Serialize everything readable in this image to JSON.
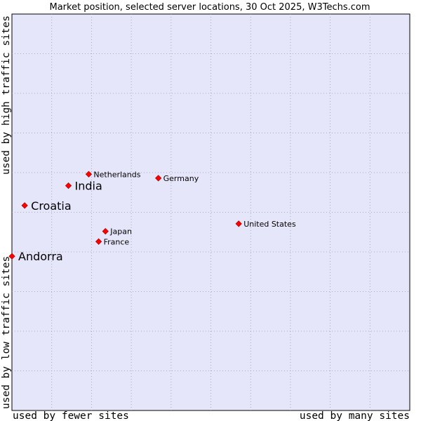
{
  "chart_data": {
    "type": "scatter",
    "title": "Market position, selected server locations, 30 Oct 2025, W3Techs.com",
    "xlabel_left": "used by fewer sites",
    "xlabel_right": "used by many sites",
    "ylabel_bottom": "used by low traffic sites",
    "ylabel_top": "used by high traffic sites",
    "xlim": [
      0,
      100
    ],
    "ylim": [
      0,
      100
    ],
    "grid": true,
    "background_color": "#e6e6fa",
    "grid_color": "#9999aa",
    "marker_color": "#ff0000",
    "points": [
      {
        "label": "Netherlands",
        "x": 19.3,
        "y": 59.6,
        "emphasis": false
      },
      {
        "label": "India",
        "x": 14.2,
        "y": 56.7,
        "emphasis": true
      },
      {
        "label": "Germany",
        "x": 36.8,
        "y": 58.6,
        "emphasis": false
      },
      {
        "label": "Croatia",
        "x": 3.2,
        "y": 51.7,
        "emphasis": true
      },
      {
        "label": "United States",
        "x": 57.0,
        "y": 47.1,
        "emphasis": false
      },
      {
        "label": "Japan",
        "x": 23.5,
        "y": 45.2,
        "emphasis": false
      },
      {
        "label": "France",
        "x": 21.8,
        "y": 42.6,
        "emphasis": false
      },
      {
        "label": "Andorra",
        "x": 0.0,
        "y": 38.9,
        "emphasis": true
      }
    ]
  }
}
